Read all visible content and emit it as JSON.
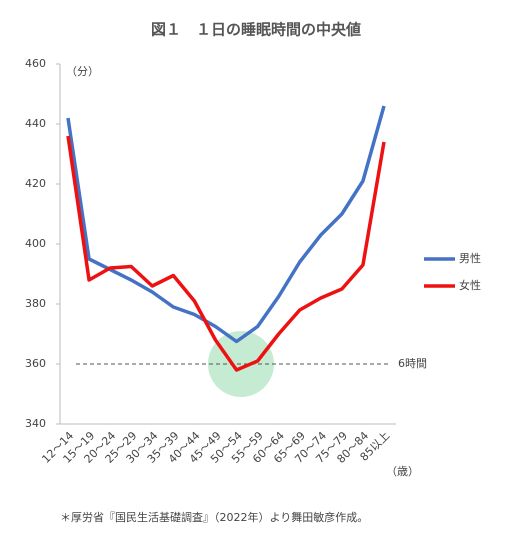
{
  "chart_data": {
    "type": "line",
    "title": "図１　１日の睡眠時間の中央値",
    "y_unit": "（分）",
    "x_unit": "（歳）",
    "footnote": "＊厚労省『国民生活基礎調査』（2022年）より舞田敏彦作成。",
    "categories": [
      "12～14",
      "15～19",
      "20～24",
      "25～29",
      "30～34",
      "35～39",
      "40～44",
      "45～49",
      "50～54",
      "55～59",
      "60～64",
      "65～69",
      "70～74",
      "75～79",
      "80～84",
      "85以上"
    ],
    "series": [
      {
        "name": "男性",
        "color": "#4472c4",
        "values": [
          442,
          395,
          391.5,
          388,
          384,
          379,
          376.5,
          372.5,
          367.5,
          372.5,
          382.5,
          394,
          403,
          410,
          421,
          446
        ]
      },
      {
        "name": "女性",
        "color": "#ee1111",
        "values": [
          436,
          388,
          392,
          392.5,
          386,
          389.5,
          381,
          368,
          358,
          361,
          370,
          378,
          382,
          385,
          393,
          434
        ]
      }
    ],
    "ylim": [
      340,
      460
    ],
    "yticks": [
      340,
      360,
      380,
      400,
      420,
      440,
      460
    ],
    "reference_line": {
      "value": 360,
      "label": "6時間"
    },
    "legend": "right"
  }
}
